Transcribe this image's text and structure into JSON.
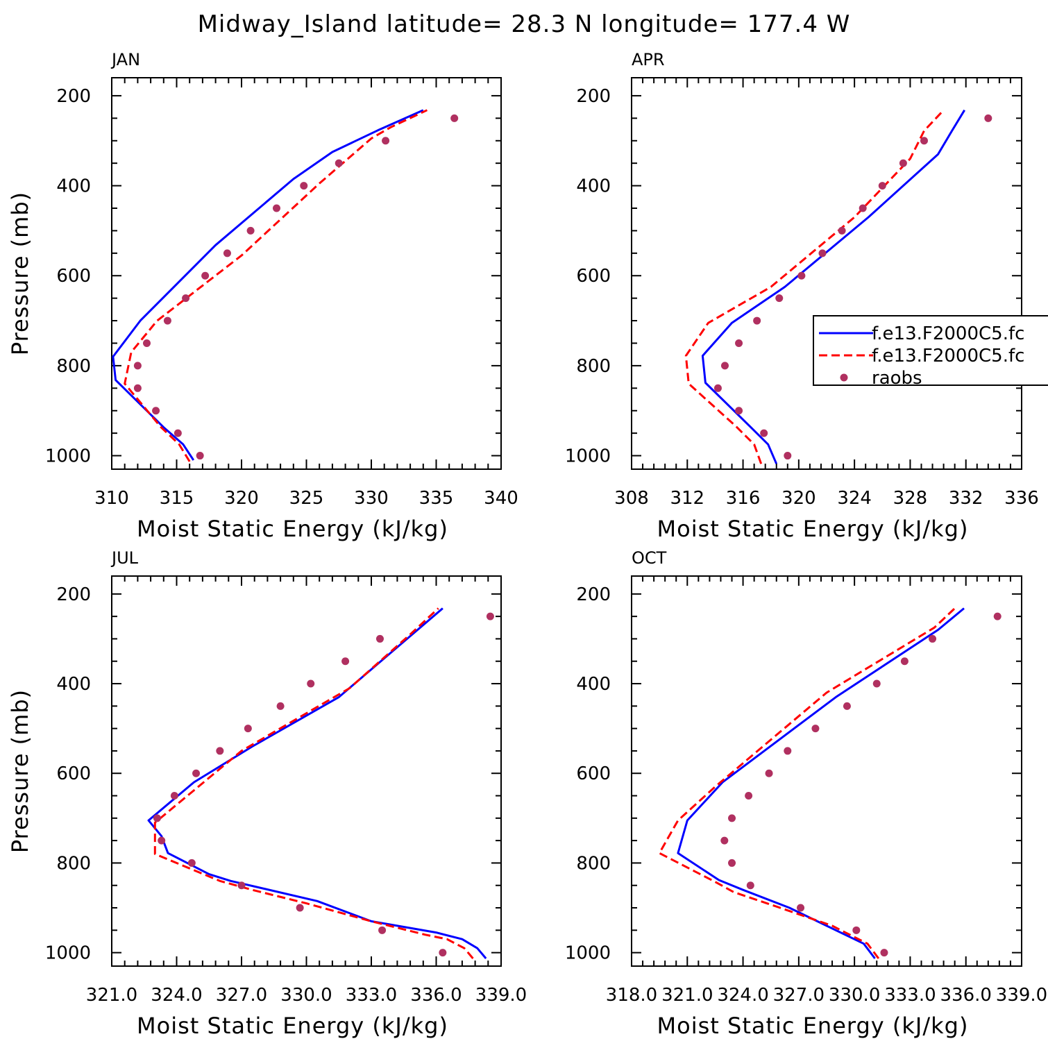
{
  "title": "Midway_Island  latitude= 28.3 N longitude= 177.4 W",
  "colors": {
    "model1": "#0000ff",
    "model2": "#ff0000",
    "raobs": "#b03060"
  },
  "legend": {
    "entries": [
      {
        "label": "f.e13.F2000C5.fc",
        "style": "solid",
        "color": "#0000ff"
      },
      {
        "label": "f.e13.F2000C5.fc",
        "style": "dashed",
        "color": "#ff0000"
      },
      {
        "label": "raobs",
        "style": "dot",
        "color": "#b03060"
      }
    ]
  },
  "chart_data": [
    {
      "type": "line",
      "panel_title": "JAN",
      "xlabel": "Moist Static Energy (kJ/kg)",
      "ylabel": "Pressure (mb)",
      "xlim": [
        310,
        340
      ],
      "ylim": [
        1000,
        200
      ],
      "xticks": [
        "310",
        "315",
        "320",
        "325",
        "330",
        "335",
        "340"
      ],
      "yticks": [
        "200",
        "400",
        "600",
        "800",
        "1000"
      ],
      "series": [
        {
          "key": "model1",
          "style": "solid",
          "points": [
            [
              316.3,
              1010
            ],
            [
              315.5,
              975
            ],
            [
              314.0,
              937
            ],
            [
              310.3,
              832
            ],
            [
              310.1,
              780
            ],
            [
              312.2,
              700
            ],
            [
              318.0,
              532
            ],
            [
              324.0,
              385
            ],
            [
              327.0,
              325
            ],
            [
              330.5,
              277
            ],
            [
              334.0,
              232
            ]
          ]
        },
        {
          "key": "model2",
          "style": "dashed",
          "points": [
            [
              316.0,
              1013
            ],
            [
              315.2,
              975
            ],
            [
              313.8,
              937
            ],
            [
              311.0,
              840
            ],
            [
              311.5,
              770
            ],
            [
              313.5,
              700
            ],
            [
              320.0,
              555
            ],
            [
              326.0,
              395
            ],
            [
              330.0,
              295
            ],
            [
              331.5,
              270
            ],
            [
              334.3,
              232
            ]
          ]
        },
        {
          "key": "raobs",
          "style": "dot",
          "points": [
            [
              316.8,
              1000
            ],
            [
              315.1,
              950
            ],
            [
              313.4,
              900
            ],
            [
              312.0,
              850
            ],
            [
              312.0,
              800
            ],
            [
              312.7,
              750
            ],
            [
              314.3,
              700
            ],
            [
              315.7,
              650
            ],
            [
              317.2,
              600
            ],
            [
              318.9,
              550
            ],
            [
              320.7,
              500
            ],
            [
              322.7,
              450
            ],
            [
              324.8,
              400
            ],
            [
              327.5,
              350
            ],
            [
              331.1,
              300
            ],
            [
              336.4,
              250
            ]
          ]
        }
      ]
    },
    {
      "type": "line",
      "panel_title": "APR",
      "xlabel": "Moist Static Energy (kJ/kg)",
      "ylabel": "",
      "xlim": [
        308,
        336
      ],
      "ylim": [
        1000,
        200
      ],
      "xticks": [
        "308",
        "312",
        "316",
        "320",
        "324",
        "328",
        "332",
        "336"
      ],
      "yticks": [
        "200",
        "400",
        "600",
        "800",
        "1000"
      ],
      "series": [
        {
          "key": "model1",
          "style": "solid",
          "points": [
            [
              318.4,
              1018
            ],
            [
              317.8,
              975
            ],
            [
              316.5,
              935
            ],
            [
              313.3,
              838
            ],
            [
              313.1,
              778
            ],
            [
              315.2,
              705
            ],
            [
              319.0,
              625
            ],
            [
              325.0,
              470
            ],
            [
              330.0,
              330
            ],
            [
              331.0,
              278
            ],
            [
              331.9,
              232
            ]
          ]
        },
        {
          "key": "model2",
          "style": "dashed",
          "points": [
            [
              317.3,
              1018
            ],
            [
              316.8,
              975
            ],
            [
              315.5,
              935
            ],
            [
              312.1,
              840
            ],
            [
              311.9,
              778
            ],
            [
              313.5,
              705
            ],
            [
              318.0,
              625
            ],
            [
              324.0,
              470
            ],
            [
              328.0,
              340
            ],
            [
              329.0,
              278
            ],
            [
              330.4,
              232
            ]
          ]
        },
        {
          "key": "raobs",
          "style": "dot",
          "points": [
            [
              319.2,
              1000
            ],
            [
              317.5,
              950
            ],
            [
              315.7,
              900
            ],
            [
              314.2,
              850
            ],
            [
              314.7,
              800
            ],
            [
              315.7,
              750
            ],
            [
              317.0,
              700
            ],
            [
              318.6,
              650
            ],
            [
              320.2,
              600
            ],
            [
              321.7,
              550
            ],
            [
              323.1,
              500
            ],
            [
              324.6,
              450
            ],
            [
              326.0,
              400
            ],
            [
              327.5,
              350
            ],
            [
              329.0,
              300
            ],
            [
              333.6,
              250
            ]
          ]
        }
      ]
    },
    {
      "type": "line",
      "panel_title": "JUL",
      "xlabel": "Moist Static Energy (kJ/kg)",
      "ylabel": "Pressure (mb)",
      "xlim": [
        321.0,
        339.0
      ],
      "ylim": [
        1000,
        200
      ],
      "xticks": [
        "321.0",
        "324.0",
        "327.0",
        "330.0",
        "333.0",
        "336.0",
        "339.0"
      ],
      "yticks": [
        "200",
        "400",
        "600",
        "800",
        "1000"
      ],
      "series": [
        {
          "key": "model1",
          "style": "solid",
          "points": [
            [
              338.3,
              1013
            ],
            [
              337.9,
              990
            ],
            [
              337.2,
              970
            ],
            [
              336.0,
              955
            ],
            [
              333.0,
              930
            ],
            [
              330.5,
              885
            ],
            [
              326.5,
              840
            ],
            [
              325.5,
              825
            ],
            [
              323.6,
              778
            ],
            [
              323.3,
              740
            ],
            [
              322.7,
              705
            ],
            [
              324.8,
              620
            ],
            [
              327.5,
              540
            ],
            [
              331.5,
              430
            ],
            [
              336.3,
              232
            ]
          ]
        },
        {
          "key": "model2",
          "style": "dashed",
          "points": [
            [
              337.7,
              1013
            ],
            [
              337.3,
              990
            ],
            [
              336.5,
              970
            ],
            [
              335.5,
              960
            ],
            [
              333.0,
              930
            ],
            [
              330.0,
              890
            ],
            [
              327.5,
              860
            ],
            [
              326.0,
              840
            ],
            [
              323.0,
              780
            ],
            [
              323.0,
              710
            ],
            [
              324.5,
              650
            ],
            [
              327.0,
              550
            ],
            [
              332.0,
              410
            ],
            [
              334.8,
              290
            ],
            [
              336.1,
              232
            ]
          ]
        },
        {
          "key": "raobs",
          "style": "dot",
          "points": [
            [
              336.3,
              1000
            ],
            [
              333.5,
              950
            ],
            [
              329.7,
              900
            ],
            [
              327.0,
              850
            ],
            [
              324.7,
              800
            ],
            [
              323.3,
              750
            ],
            [
              323.1,
              700
            ],
            [
              323.9,
              650
            ],
            [
              324.9,
              600
            ],
            [
              326.0,
              550
            ],
            [
              327.3,
              500
            ],
            [
              328.8,
              450
            ],
            [
              330.2,
              400
            ],
            [
              331.8,
              350
            ],
            [
              333.4,
              300
            ],
            [
              338.5,
              250
            ]
          ]
        }
      ]
    },
    {
      "type": "line",
      "panel_title": "OCT",
      "xlabel": "Moist Static Energy (kJ/kg)",
      "ylabel": "",
      "xlim": [
        318.0,
        339.0
      ],
      "ylim": [
        1000,
        200
      ],
      "xticks": [
        "318.0",
        "321.0",
        "324.0",
        "327.0",
        "330.0",
        "333.0",
        "336.0",
        "339.0"
      ],
      "yticks": [
        "200",
        "400",
        "600",
        "800",
        "1000"
      ],
      "series": [
        {
          "key": "model1",
          "style": "solid",
          "points": [
            [
              331.1,
              1013
            ],
            [
              330.5,
              980
            ],
            [
              328.5,
              940
            ],
            [
              326.5,
              900
            ],
            [
              324.0,
              860
            ],
            [
              322.7,
              838
            ],
            [
              320.5,
              778
            ],
            [
              321.0,
              705
            ],
            [
              322.9,
              620
            ],
            [
              329.0,
              430
            ],
            [
              334.5,
              280
            ],
            [
              335.9,
              232
            ]
          ]
        },
        {
          "key": "model2",
          "style": "dashed",
          "points": [
            [
              331.3,
              1013
            ],
            [
              330.7,
              980
            ],
            [
              328.8,
              940
            ],
            [
              326.0,
              900
            ],
            [
              323.5,
              865
            ],
            [
              322.5,
              842
            ],
            [
              319.5,
              778
            ],
            [
              320.5,
              705
            ],
            [
              322.5,
              630
            ],
            [
              328.5,
              420
            ],
            [
              334.3,
              275
            ],
            [
              335.4,
              232
            ]
          ]
        },
        {
          "key": "raobs",
          "style": "dot",
          "points": [
            [
              331.6,
              1000
            ],
            [
              330.1,
              950
            ],
            [
              327.1,
              900
            ],
            [
              324.4,
              850
            ],
            [
              323.4,
              800
            ],
            [
              323.0,
              750
            ],
            [
              323.4,
              700
            ],
            [
              324.3,
              650
            ],
            [
              325.4,
              600
            ],
            [
              326.4,
              550
            ],
            [
              327.9,
              500
            ],
            [
              329.6,
              450
            ],
            [
              331.2,
              400
            ],
            [
              332.7,
              350
            ],
            [
              334.2,
              300
            ],
            [
              337.7,
              250
            ]
          ]
        }
      ]
    }
  ]
}
